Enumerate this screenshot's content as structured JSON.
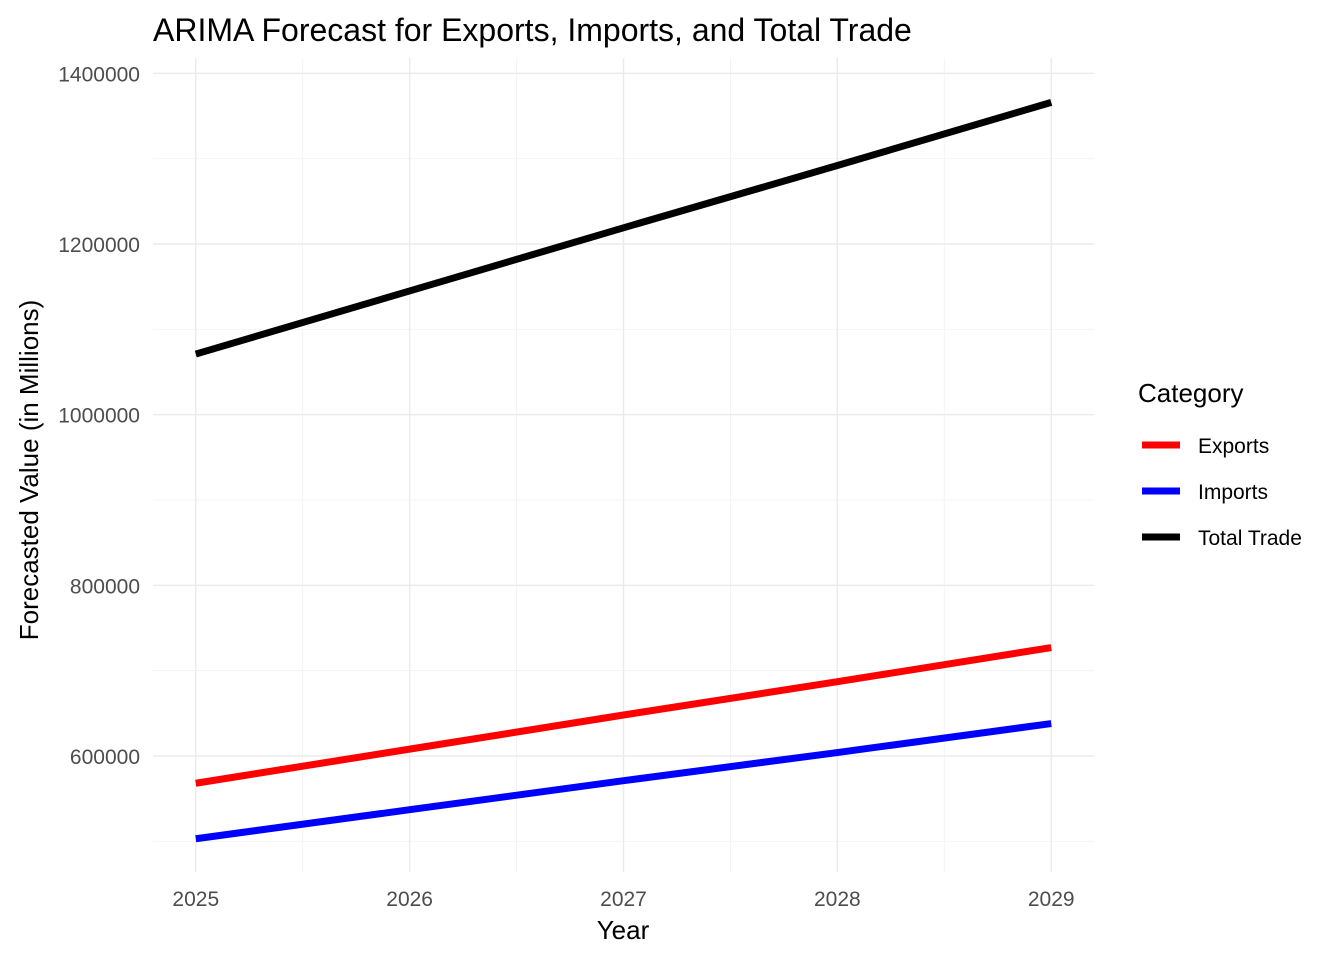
{
  "chart_data": {
    "type": "line",
    "title": "ARIMA Forecast for Exports, Imports, and Total Trade",
    "xlabel": "Year",
    "ylabel": "Forecasted Value (in Millions)",
    "x": [
      2025,
      2026,
      2027,
      2028,
      2029
    ],
    "x_ticks": [
      "2025",
      "2026",
      "2027",
      "2028",
      "2029"
    ],
    "y_ticks": [
      "600000",
      "800000",
      "1000000",
      "1200000",
      "1400000"
    ],
    "y_tick_values": [
      600000,
      800000,
      1000000,
      1200000,
      1400000
    ],
    "xlim": [
      2024.8,
      2029.2
    ],
    "ylim": [
      464000,
      1418000
    ],
    "grid": true,
    "legend": {
      "title": "Category",
      "position": "right"
    },
    "series": [
      {
        "name": "Exports",
        "color": "#ff0000",
        "values": [
          568000,
          608000,
          648000,
          687000,
          727000
        ]
      },
      {
        "name": "Imports",
        "color": "#0000ff",
        "values": [
          503000,
          537000,
          571000,
          604000,
          638000
        ]
      },
      {
        "name": "Total Trade",
        "color": "#000000",
        "values": [
          1071000,
          1145000,
          1219000,
          1292000,
          1366000
        ]
      }
    ]
  }
}
